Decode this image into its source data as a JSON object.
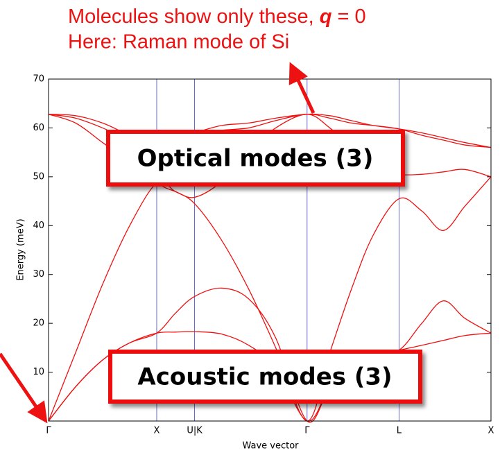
{
  "chart_data": {
    "type": "line",
    "xlabel": "Wave vector",
    "ylabel": "Energy (meV)",
    "annotations": {
      "line1": [
        "Molecules show only these, ",
        "q",
        " = 0"
      ],
      "line2": "Here: Raman mode of Si",
      "optical": "Optical modes (3)",
      "acoustic": "Acoustic modes (3)"
    },
    "xlim": [
      0,
      4.09
    ],
    "ylim": [
      0,
      70
    ],
    "xticks": [
      {
        "value": 0,
        "label": "Γ"
      },
      {
        "value": 1,
        "label": "X"
      },
      {
        "value": 1.35,
        "label": "U|K"
      },
      {
        "value": 2.39,
        "label": "Γ"
      },
      {
        "value": 3.24,
        "label": "L"
      },
      {
        "value": 4.09,
        "label": "X"
      }
    ],
    "yticks": [
      10,
      20,
      30,
      40,
      50,
      60,
      70
    ],
    "grid_color": "#4444cc",
    "x": [
      0,
      0.25,
      0.5,
      0.75,
      1,
      1.17,
      1.35,
      1.6,
      1.85,
      2.1,
      2.39,
      2.6,
      2.8,
      3.0,
      3.24,
      3.45,
      3.65,
      3.85,
      4.09
    ],
    "series": [
      {
        "color": "#ee1111",
        "values": [
          0,
          7,
          12.5,
          16,
          18,
          18.2,
          18.3,
          17.8,
          15.5,
          11,
          0,
          7,
          11,
          13.5,
          14.5,
          15.5,
          16.5,
          17.5,
          18
        ]
      },
      {
        "color": "#ee1111",
        "values": [
          0,
          7,
          12.5,
          16,
          18,
          22,
          25.5,
          27.2,
          25,
          17,
          0,
          7,
          11,
          13.5,
          14.5,
          20,
          24.6,
          21,
          18
        ]
      },
      {
        "color": "#ee1111",
        "values": [
          0,
          14,
          28,
          40,
          48.7,
          47,
          44.5,
          37,
          27,
          15,
          0,
          14,
          27,
          38,
          45.5,
          43,
          39,
          44,
          50
        ]
      },
      {
        "color": "#ee1111",
        "values": [
          62.8,
          61,
          57,
          53,
          48.7,
          47,
          45.8,
          49,
          55,
          60,
          62.8,
          60,
          56,
          52,
          50.5,
          50.5,
          51,
          51.5,
          50
        ]
      },
      {
        "color": "#ee1111",
        "values": [
          62.8,
          62,
          60,
          57.5,
          56.5,
          57.5,
          58.5,
          59.5,
          60,
          61.5,
          62.8,
          62,
          61,
          60.5,
          59.8,
          58.5,
          57.5,
          56.5,
          56
        ]
      },
      {
        "color": "#ee1111",
        "values": [
          62.8,
          62.5,
          61,
          58.5,
          56.5,
          58,
          59,
          60.5,
          61,
          62,
          62.8,
          62.5,
          61.5,
          60.5,
          59.8,
          59,
          58,
          57,
          56
        ]
      }
    ]
  }
}
